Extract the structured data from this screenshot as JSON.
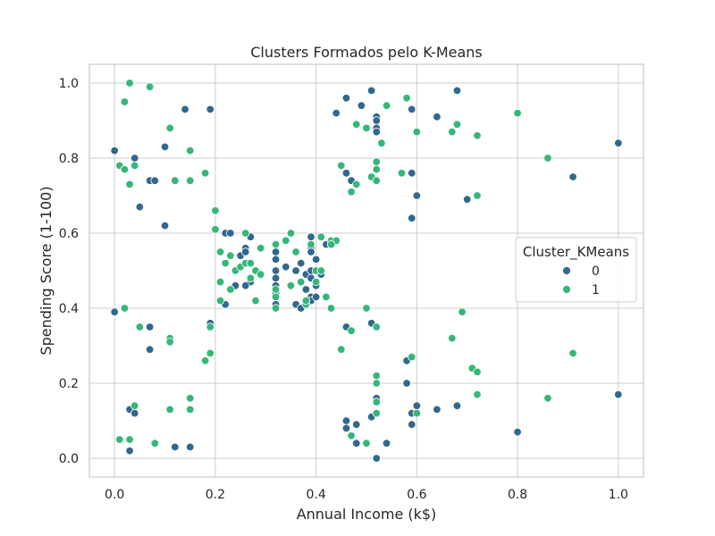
{
  "chart_data": {
    "type": "scatter",
    "title": "Clusters Formados pelo K-Means",
    "xlabel": "Annual Income (k$)",
    "ylabel": "Spending Score (1-100)",
    "xlim": [
      -0.05,
      1.05
    ],
    "ylim": [
      -0.05,
      1.05
    ],
    "x_ticks": [
      "0.0",
      "0.2",
      "0.4",
      "0.6",
      "0.8",
      "1.0"
    ],
    "y_ticks": [
      "0.0",
      "0.2",
      "0.4",
      "0.6",
      "0.8",
      "1.0"
    ],
    "grid": true,
    "legend": {
      "title": "Cluster_KMeans",
      "placement": "right"
    },
    "colors": {
      "0": "#31688e",
      "1": "#35b779"
    },
    "series": [
      {
        "name": "0",
        "points": [
          [
            0.0,
            0.82
          ],
          [
            0.0,
            0.39
          ],
          [
            0.04,
            0.8
          ],
          [
            0.05,
            0.67
          ],
          [
            0.07,
            0.74
          ],
          [
            0.08,
            0.74
          ],
          [
            0.07,
            0.35
          ],
          [
            0.07,
            0.29
          ],
          [
            0.1,
            0.83
          ],
          [
            0.1,
            0.62
          ],
          [
            0.14,
            0.93
          ],
          [
            0.19,
            0.93
          ],
          [
            0.19,
            0.36
          ],
          [
            0.03,
            0.13
          ],
          [
            0.04,
            0.12
          ],
          [
            0.03,
            0.02
          ],
          [
            0.12,
            0.03
          ],
          [
            0.15,
            0.03
          ],
          [
            0.22,
            0.6
          ],
          [
            0.23,
            0.6
          ],
          [
            0.25,
            0.54
          ],
          [
            0.26,
            0.56
          ],
          [
            0.26,
            0.55
          ],
          [
            0.27,
            0.59
          ],
          [
            0.27,
            0.47
          ],
          [
            0.28,
            0.5
          ],
          [
            0.22,
            0.41
          ],
          [
            0.24,
            0.46
          ],
          [
            0.26,
            0.46
          ],
          [
            0.32,
            0.55
          ],
          [
            0.32,
            0.53
          ],
          [
            0.32,
            0.5
          ],
          [
            0.32,
            0.48
          ],
          [
            0.32,
            0.46
          ],
          [
            0.32,
            0.44
          ],
          [
            0.32,
            0.41
          ],
          [
            0.34,
            0.51
          ],
          [
            0.36,
            0.5
          ],
          [
            0.36,
            0.41
          ],
          [
            0.37,
            0.4
          ],
          [
            0.37,
            0.52
          ],
          [
            0.38,
            0.49
          ],
          [
            0.38,
            0.45
          ],
          [
            0.39,
            0.59
          ],
          [
            0.39,
            0.56
          ],
          [
            0.39,
            0.55
          ],
          [
            0.39,
            0.5
          ],
          [
            0.39,
            0.48
          ],
          [
            0.39,
            0.43
          ],
          [
            0.39,
            0.42
          ],
          [
            0.4,
            0.53
          ],
          [
            0.4,
            0.47
          ],
          [
            0.4,
            0.46
          ],
          [
            0.4,
            0.43
          ],
          [
            0.41,
            0.49
          ],
          [
            0.42,
            0.57
          ],
          [
            0.44,
            0.92
          ],
          [
            0.46,
            0.96
          ],
          [
            0.49,
            0.94
          ],
          [
            0.51,
            0.98
          ],
          [
            0.52,
            0.91
          ],
          [
            0.52,
            0.9
          ],
          [
            0.52,
            0.88
          ],
          [
            0.52,
            0.87
          ],
          [
            0.59,
            0.93
          ],
          [
            0.64,
            0.91
          ],
          [
            0.68,
            0.98
          ],
          [
            1.0,
            0.84
          ],
          [
            0.46,
            0.76
          ],
          [
            0.47,
            0.74
          ],
          [
            0.59,
            0.76
          ],
          [
            0.6,
            0.7
          ],
          [
            0.59,
            0.64
          ],
          [
            0.7,
            0.69
          ],
          [
            0.91,
            0.75
          ],
          [
            0.46,
            0.35
          ],
          [
            0.51,
            0.36
          ],
          [
            0.58,
            0.26
          ],
          [
            0.58,
            0.2
          ],
          [
            0.52,
            0.16
          ],
          [
            0.59,
            0.12
          ],
          [
            0.6,
            0.14
          ],
          [
            0.59,
            0.09
          ],
          [
            0.64,
            0.13
          ],
          [
            0.68,
            0.14
          ],
          [
            0.46,
            0.1
          ],
          [
            0.46,
            0.08
          ],
          [
            0.48,
            0.09
          ],
          [
            0.48,
            0.04
          ],
          [
            0.51,
            0.11
          ],
          [
            0.54,
            0.04
          ],
          [
            0.52,
            0.0
          ],
          [
            0.8,
            0.07
          ],
          [
            1.0,
            0.17
          ]
        ]
      },
      {
        "name": "1",
        "points": [
          [
            0.03,
            1.0
          ],
          [
            0.07,
            0.99
          ],
          [
            0.02,
            0.95
          ],
          [
            0.11,
            0.88
          ],
          [
            0.15,
            0.82
          ],
          [
            0.01,
            0.78
          ],
          [
            0.02,
            0.77
          ],
          [
            0.04,
            0.78
          ],
          [
            0.03,
            0.73
          ],
          [
            0.12,
            0.74
          ],
          [
            0.15,
            0.74
          ],
          [
            0.18,
            0.76
          ],
          [
            0.2,
            0.66
          ],
          [
            0.2,
            0.61
          ],
          [
            0.02,
            0.4
          ],
          [
            0.05,
            0.35
          ],
          [
            0.11,
            0.32
          ],
          [
            0.11,
            0.31
          ],
          [
            0.19,
            0.35
          ],
          [
            0.18,
            0.26
          ],
          [
            0.19,
            0.28
          ],
          [
            0.01,
            0.05
          ],
          [
            0.03,
            0.05
          ],
          [
            0.04,
            0.14
          ],
          [
            0.08,
            0.04
          ],
          [
            0.11,
            0.13
          ],
          [
            0.15,
            0.13
          ],
          [
            0.15,
            0.16
          ],
          [
            0.21,
            0.55
          ],
          [
            0.21,
            0.47
          ],
          [
            0.21,
            0.42
          ],
          [
            0.22,
            0.52
          ],
          [
            0.23,
            0.45
          ],
          [
            0.23,
            0.54
          ],
          [
            0.24,
            0.5
          ],
          [
            0.25,
            0.51
          ],
          [
            0.26,
            0.52
          ],
          [
            0.26,
            0.6
          ],
          [
            0.27,
            0.52
          ],
          [
            0.27,
            0.48
          ],
          [
            0.28,
            0.5
          ],
          [
            0.29,
            0.56
          ],
          [
            0.29,
            0.49
          ],
          [
            0.28,
            0.42
          ],
          [
            0.32,
            0.57
          ],
          [
            0.32,
            0.45
          ],
          [
            0.32,
            0.43
          ],
          [
            0.32,
            0.4
          ],
          [
            0.34,
            0.58
          ],
          [
            0.35,
            0.6
          ],
          [
            0.35,
            0.46
          ],
          [
            0.36,
            0.55
          ],
          [
            0.37,
            0.47
          ],
          [
            0.38,
            0.41
          ],
          [
            0.38,
            0.42
          ],
          [
            0.39,
            0.57
          ],
          [
            0.4,
            0.5
          ],
          [
            0.4,
            0.47
          ],
          [
            0.41,
            0.59
          ],
          [
            0.41,
            0.5
          ],
          [
            0.42,
            0.43
          ],
          [
            0.43,
            0.4
          ],
          [
            0.43,
            0.58
          ],
          [
            0.44,
            0.58
          ],
          [
            0.43,
            0.57
          ],
          [
            0.45,
            0.29
          ],
          [
            0.47,
            0.34
          ],
          [
            0.5,
            0.4
          ],
          [
            0.52,
            0.35
          ],
          [
            0.52,
            0.22
          ],
          [
            0.52,
            0.2
          ],
          [
            0.52,
            0.15
          ],
          [
            0.52,
            0.12
          ],
          [
            0.59,
            0.27
          ],
          [
            0.6,
            0.12
          ],
          [
            0.67,
            0.32
          ],
          [
            0.69,
            0.39
          ],
          [
            0.71,
            0.24
          ],
          [
            0.72,
            0.23
          ],
          [
            0.72,
            0.17
          ],
          [
            0.86,
            0.16
          ],
          [
            0.91,
            0.28
          ],
          [
            0.47,
            0.06
          ],
          [
            0.5,
            0.04
          ],
          [
            0.45,
            0.78
          ],
          [
            0.47,
            0.71
          ],
          [
            0.48,
            0.89
          ],
          [
            0.48,
            0.73
          ],
          [
            0.5,
            0.88
          ],
          [
            0.51,
            0.75
          ],
          [
            0.52,
            0.79
          ],
          [
            0.52,
            0.77
          ],
          [
            0.52,
            0.74
          ],
          [
            0.53,
            0.84
          ],
          [
            0.54,
            0.94
          ],
          [
            0.57,
            0.76
          ],
          [
            0.58,
            0.96
          ],
          [
            0.6,
            0.87
          ],
          [
            0.67,
            0.87
          ],
          [
            0.68,
            0.89
          ],
          [
            0.72,
            0.86
          ],
          [
            0.72,
            0.7
          ],
          [
            0.8,
            0.92
          ],
          [
            0.86,
            0.8
          ]
        ]
      }
    ]
  }
}
